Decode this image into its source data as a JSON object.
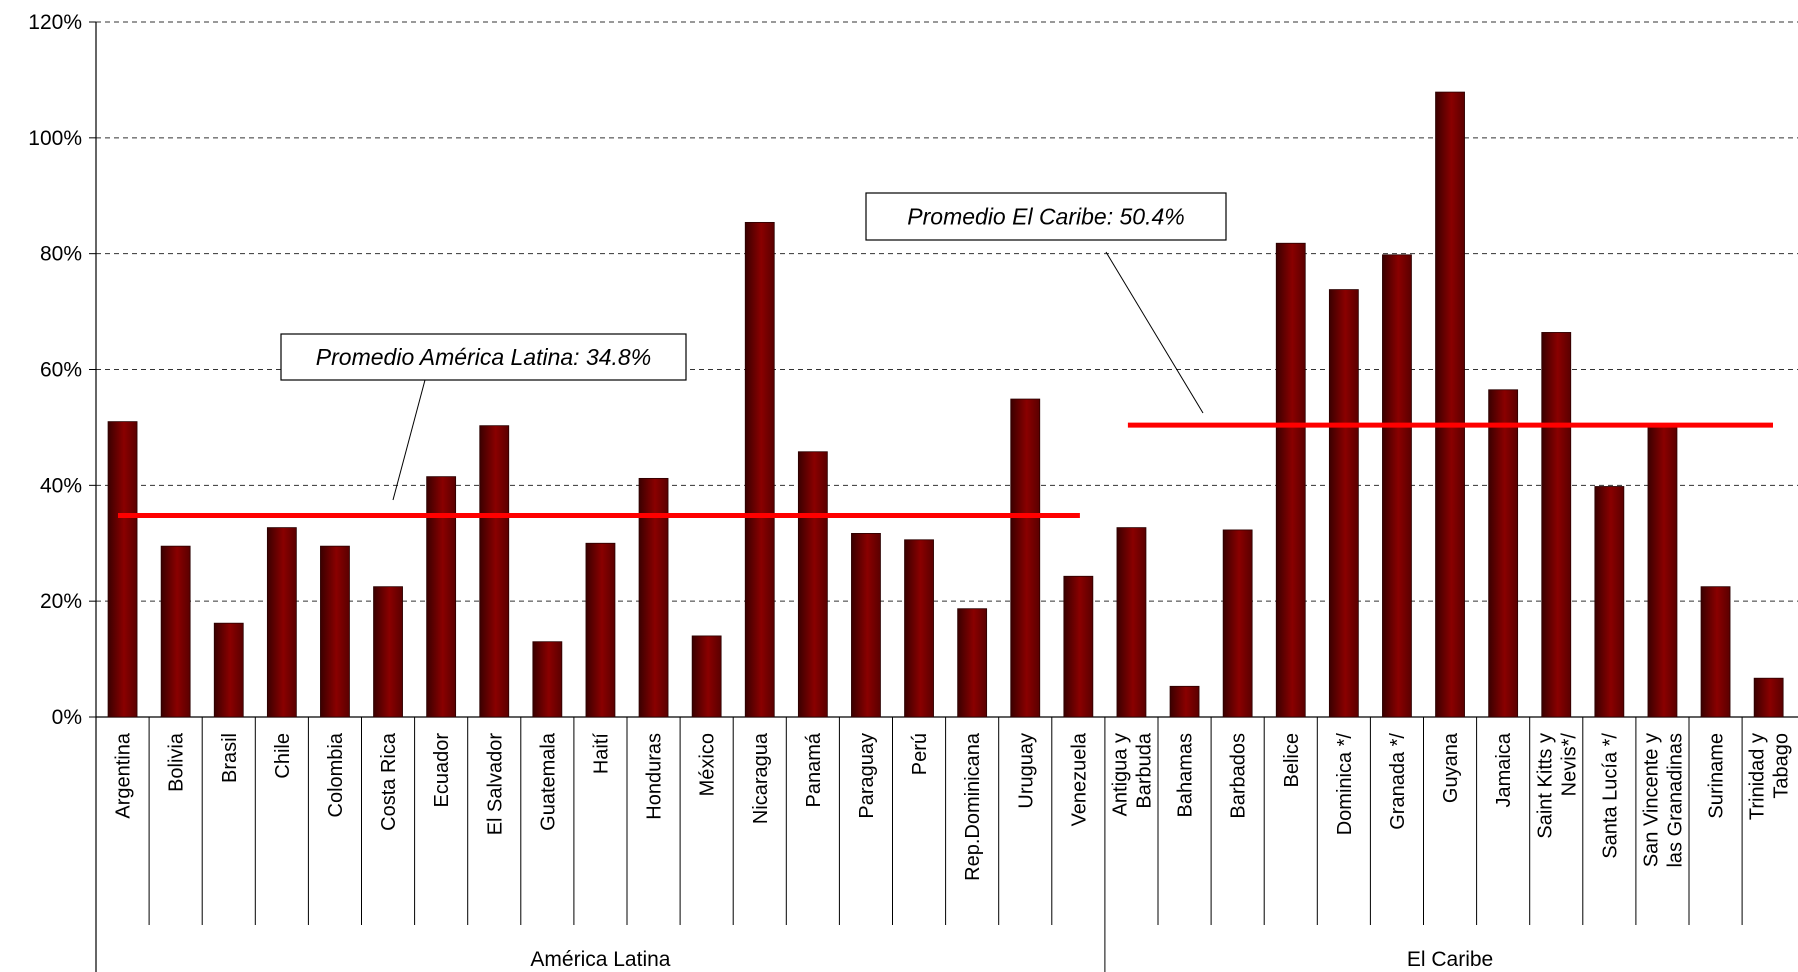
{
  "chart_data": {
    "type": "bar",
    "title": "",
    "xlabel": "",
    "ylabel": "",
    "ylim": [
      0,
      120
    ],
    "y_ticks": [
      "0%",
      "20%",
      "40%",
      "60%",
      "80%",
      "100%",
      "120%"
    ],
    "y_tick_values": [
      0,
      20,
      40,
      60,
      80,
      100,
      120
    ],
    "grid": true,
    "bar_color": "#7a0000",
    "average_line_color": "#ff0000",
    "groups": [
      {
        "name": "América Latina",
        "categories": [
          "Argentina",
          "Bolivia",
          "Brasil",
          "Chile",
          "Colombia",
          "Costa Rica",
          "Ecuador",
          "El Salvador",
          "Guatemala",
          "Haití",
          "Honduras",
          "México",
          "Nicaragua",
          "Panamá",
          "Paraguay",
          "Perú",
          "Rep.Dominicana",
          "Uruguay",
          "Venezuela"
        ],
        "values": [
          51,
          29.5,
          16.2,
          32.7,
          29.5,
          22.5,
          41.5,
          50.3,
          13,
          30,
          41.2,
          14,
          85.4,
          45.8,
          31.7,
          30.6,
          18.7,
          54.9,
          24.3
        ],
        "average": 34.8,
        "average_label": "Promedio América Latina: 34.8%"
      },
      {
        "name": "El Caribe",
        "categories": [
          "Antigua y Barbuda",
          "Bahamas",
          "Barbados",
          "Belice",
          "Dominica */",
          "Granada */",
          "Guyana",
          "Jamaica",
          "Saint Kitts y Nevis*/",
          "Santa Lucía */",
          "San Vincente y las Granadinas",
          "Suriname",
          "Trinidad y Tabago"
        ],
        "category_lines": [
          [
            "Antigua y",
            "Barbuda"
          ],
          [
            "Bahamas"
          ],
          [
            "Barbados"
          ],
          [
            "Belice"
          ],
          [
            "Dominica */"
          ],
          [
            "Granada */"
          ],
          [
            "Guyana"
          ],
          [
            "Jamaica"
          ],
          [
            "Saint Kitts y",
            "Nevis*/"
          ],
          [
            "Santa Lucía */"
          ],
          [
            "San Vincente y",
            "las Granadinas"
          ],
          [
            "Suriname"
          ],
          [
            "Trinidad y",
            "Tabago"
          ]
        ],
        "values": [
          32.7,
          5.3,
          32.3,
          81.8,
          73.8,
          79.8,
          107.9,
          56.5,
          66.4,
          39.8,
          50.4,
          22.5,
          6.7
        ],
        "average": 50.4,
        "average_label": "Promedio El Caribe: 50.4%"
      }
    ]
  }
}
